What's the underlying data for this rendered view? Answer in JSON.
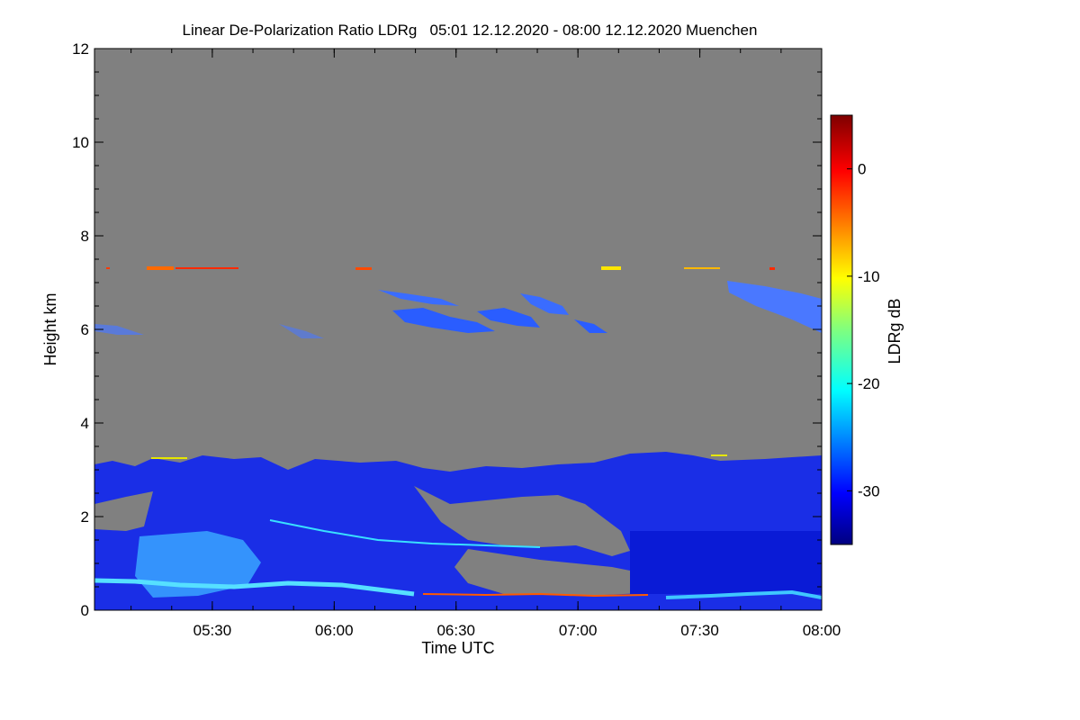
{
  "chart_data": {
    "type": "heatmap",
    "title": "Linear De-Polarization Ratio LDRg   05:01 12.12.2020 - 08:00 12.12.2020 Muenchen",
    "xlabel": "Time UTC",
    "ylabel": "Height km",
    "colorbar_label": "LDRg dB",
    "xlim": [
      "05:01",
      "08:00"
    ],
    "ylim": [
      0,
      12
    ],
    "x_ticks": [
      "05:30",
      "06:00",
      "06:30",
      "07:00",
      "07:30",
      "08:00"
    ],
    "y_ticks": [
      0,
      2,
      4,
      6,
      8,
      10,
      12
    ],
    "colorbar_range": [
      -35,
      5
    ],
    "colorbar_ticks": [
      0,
      -10,
      -20,
      -30
    ],
    "colormap": "jet",
    "no_data_color": "#808080",
    "features": [
      {
        "description": "boundary-layer aerosol / low cloud",
        "time_range": [
          "05:01",
          "08:00"
        ],
        "height_range_km": [
          0,
          3.3
        ],
        "ldr_db_range": [
          -35,
          -22
        ]
      },
      {
        "description": "depolarizing layer near surface",
        "time_range": [
          "05:01",
          "08:00"
        ],
        "height_range_km": [
          0.3,
          0.6
        ],
        "ldr_db_range": [
          -24,
          -20
        ]
      },
      {
        "description": "mid-level ice cloud filaments",
        "time_range": [
          "06:10",
          "07:10"
        ],
        "height_range_km": [
          5.9,
          6.9
        ],
        "ldr_db_range": [
          -32,
          -27
        ]
      },
      {
        "description": "ice cloud top right",
        "time_range": [
          "07:35",
          "08:00"
        ],
        "height_range_km": [
          5.9,
          6.9
        ],
        "ldr_db_range": [
          -30,
          -26
        ]
      },
      {
        "description": "high signal streak",
        "time_range": [
          "05:16",
          "07:50"
        ],
        "height_range_km": [
          7.2,
          7.4
        ],
        "ldr_db_range": [
          -12,
          0
        ]
      }
    ]
  }
}
